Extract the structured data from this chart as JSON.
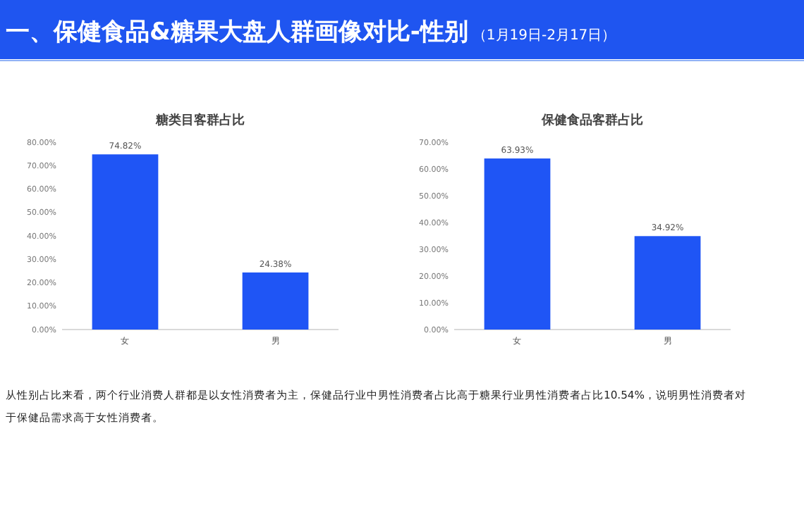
{
  "chart_data": [
    {
      "type": "other",
      "title": "一、保健食品&糖果大盘人群画像对比-性别",
      "subtitle": "（1月19日-2月17日）",
      "annotations": [
        "从性别占比来看，两个行业消费人群都是以女性消费者为主，保健品行业中男性消费者占比高于糖果行业男性消费者占比10.54%，说明男性消费者对于保健品需求高于女性消费者。"
      ]
    },
    {
      "type": "bar",
      "title": "糖类目客群占比",
      "categories": [
        "女",
        "男"
      ],
      "values": [
        74.82,
        24.38
      ],
      "color": "#1f55f5",
      "ylim": [
        0,
        80
      ],
      "yticks": [
        {
          "value": 0,
          "label": "0.00%"
        },
        {
          "value": 10,
          "label": "10.00%"
        },
        {
          "value": 20,
          "label": "20.00%"
        },
        {
          "value": 30,
          "label": "30.00%"
        },
        {
          "value": 40,
          "label": "40.00%"
        },
        {
          "value": 50,
          "label": "50.00%"
        },
        {
          "value": 60,
          "label": "60.00%"
        },
        {
          "value": 70,
          "label": "70.00%"
        },
        {
          "value": 80,
          "label": "80.00%"
        }
      ],
      "value_labels": [
        "74.82%",
        "24.38%"
      ]
    },
    {
      "type": "bar",
      "title": "保健食品客群占比",
      "categories": [
        "女",
        "男"
      ],
      "values": [
        63.93,
        34.92
      ],
      "color": "#1f55f5",
      "ylim": [
        0,
        70
      ],
      "yticks": [
        {
          "value": 0,
          "label": "0.00%"
        },
        {
          "value": 10,
          "label": "10.00%"
        },
        {
          "value": 20,
          "label": "20.00%"
        },
        {
          "value": 30,
          "label": "30.00%"
        },
        {
          "value": 40,
          "label": "40.00%"
        },
        {
          "value": 50,
          "label": "50.00%"
        },
        {
          "value": 60,
          "label": "60.00%"
        },
        {
          "value": 70,
          "label": "70.00%"
        }
      ],
      "value_labels": [
        "63.93%",
        "34.92%"
      ]
    }
  ]
}
